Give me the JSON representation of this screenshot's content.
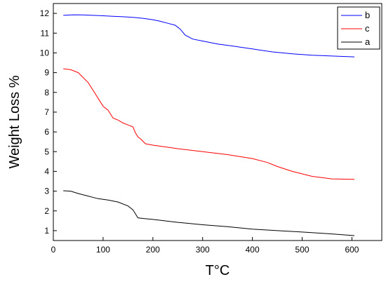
{
  "chart_data": {
    "type": "line",
    "title": "",
    "xlabel": "T°C",
    "ylabel": "Weight Loss %",
    "xlim": [
      0,
      660
    ],
    "ylim": [
      0.5,
      12.5
    ],
    "xticks": [
      0,
      100,
      200,
      300,
      400,
      500,
      600
    ],
    "yticks": [
      1,
      2,
      3,
      4,
      5,
      6,
      7,
      8,
      9,
      10,
      11,
      12
    ],
    "grid": false,
    "legend": "top-right",
    "series": [
      {
        "name": "b",
        "color": "#0000ff",
        "x": [
          20,
          40,
          60,
          80,
          100,
          120,
          140,
          160,
          180,
          200,
          215,
          230,
          245,
          255,
          265,
          280,
          300,
          330,
          360,
          400,
          440,
          480,
          520,
          560,
          605
        ],
        "y": [
          11.9,
          11.93,
          11.92,
          11.9,
          11.88,
          11.85,
          11.83,
          11.8,
          11.75,
          11.68,
          11.6,
          11.5,
          11.4,
          11.2,
          10.9,
          10.7,
          10.6,
          10.45,
          10.35,
          10.2,
          10.05,
          9.95,
          9.88,
          9.84,
          9.8
        ]
      },
      {
        "name": "c",
        "color": "#ff0000",
        "x": [
          20,
          35,
          50,
          60,
          70,
          80,
          90,
          100,
          110,
          120,
          130,
          140,
          150,
          160,
          165,
          170,
          175,
          185,
          200,
          250,
          300,
          350,
          400,
          430,
          450,
          480,
          520,
          560,
          605
        ],
        "y": [
          9.2,
          9.15,
          9.0,
          8.75,
          8.5,
          8.1,
          7.7,
          7.3,
          7.1,
          6.7,
          6.6,
          6.45,
          6.35,
          6.25,
          5.95,
          5.75,
          5.65,
          5.4,
          5.33,
          5.15,
          5.0,
          4.85,
          4.65,
          4.45,
          4.25,
          4.0,
          3.75,
          3.62,
          3.6
        ]
      },
      {
        "name": "a",
        "color": "#000000",
        "x": [
          20,
          35,
          50,
          70,
          90,
          110,
          130,
          150,
          160,
          165,
          170,
          180,
          200,
          250,
          300,
          350,
          400,
          450,
          500,
          550,
          605
        ],
        "y": [
          3.02,
          3.0,
          2.88,
          2.75,
          2.62,
          2.55,
          2.45,
          2.25,
          2.05,
          1.85,
          1.65,
          1.62,
          1.57,
          1.42,
          1.3,
          1.2,
          1.08,
          1.0,
          0.93,
          0.85,
          0.75
        ]
      }
    ]
  }
}
